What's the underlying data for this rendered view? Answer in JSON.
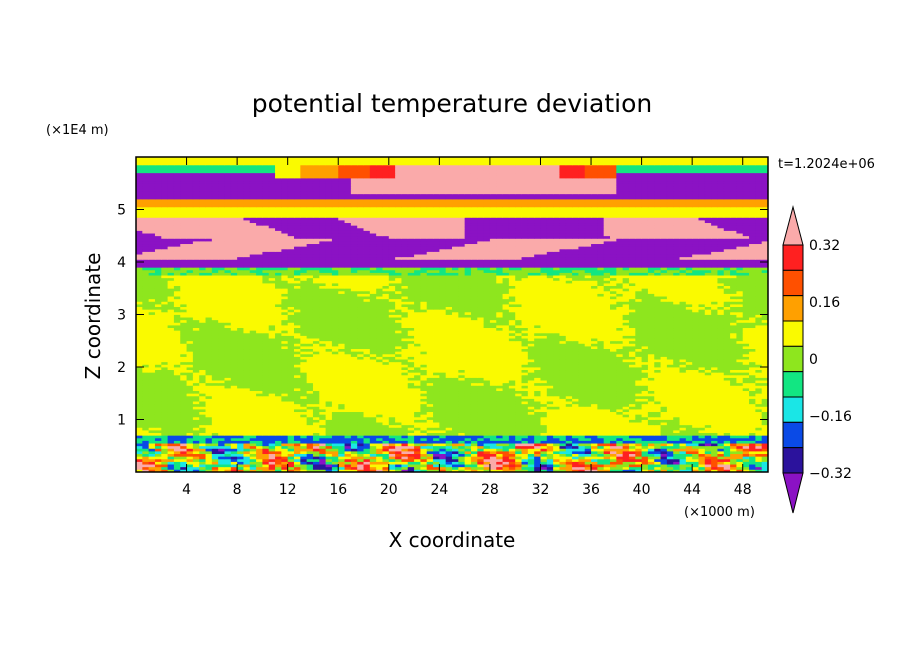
{
  "chart_data": {
    "type": "heatmap",
    "title": "potential temperature deviation",
    "xlabel": "X coordinate",
    "ylabel": "Z coordinate",
    "x_unit": "(×1000 m)",
    "y_unit": "(×1E4 m)",
    "time_label": "t=1.2024e+06",
    "xlim": [
      0,
      50
    ],
    "ylim": [
      0,
      6
    ],
    "x_ticks": [
      4,
      8,
      12,
      16,
      20,
      24,
      28,
      32,
      36,
      40,
      44,
      48
    ],
    "y_ticks": [
      1,
      2,
      3,
      4,
      5
    ],
    "colorbar": {
      "levels": [
        -0.4,
        -0.32,
        -0.24,
        -0.16,
        -0.08,
        0,
        0.08,
        0.16,
        0.24,
        0.32,
        0.4
      ],
      "tick_labels": [
        "0.32",
        "0.16",
        "0",
        "−0.16",
        "−0.32"
      ],
      "tick_values": [
        0.32,
        0.16,
        0,
        -0.16,
        -0.32
      ],
      "colors_low_to_high": [
        "#8b12c4",
        "#2b129c",
        "#0a4ae6",
        "#1ae6e6",
        "#12e682",
        "#8ee61e",
        "#fafa00",
        "#ffa000",
        "#ff5000",
        "#ff2020",
        "#faaaaa"
      ]
    },
    "layers": [
      {
        "z_range": [
          5.6,
          6.0
        ],
        "value": 0.0,
        "note": ""
      },
      {
        "z_range": [
          5.2,
          5.6
        ],
        "value": -0.4
      },
      {
        "z_range": [
          4.5,
          4.9
        ],
        "value": 0.4
      },
      {
        "z_range": [
          3.9,
          4.4
        ],
        "value": -0.4
      },
      {
        "z_range": [
          0.7,
          3.8
        ],
        "value": 0.04
      },
      {
        "z_range": [
          0.0,
          0.7
        ],
        "value": -0.2
      }
    ]
  }
}
